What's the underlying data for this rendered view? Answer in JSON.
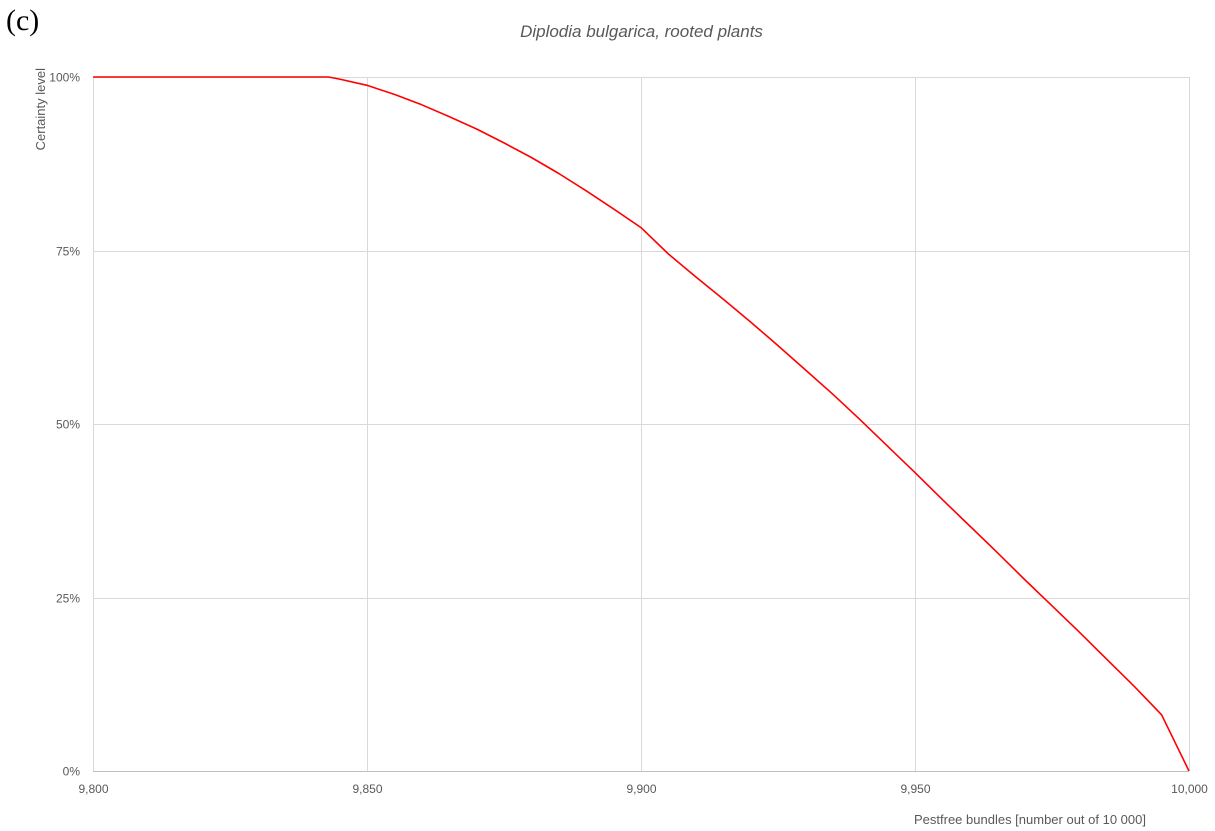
{
  "panel_label": "(c)",
  "chart_data": {
    "type": "line",
    "title": "Diplodia bulgarica, rooted plants",
    "xlabel": "Pestfree bundles [number out of 10 000]",
    "ylabel": "Certainty level",
    "xlim": [
      9800,
      10000
    ],
    "ylim": [
      0,
      1
    ],
    "x_ticks": [
      9800,
      9850,
      9900,
      9950,
      10000
    ],
    "x_tick_labels": [
      "9,800",
      "9,850",
      "9,900",
      "9,950",
      "10,000"
    ],
    "y_ticks": [
      0,
      0.25,
      0.5,
      0.75,
      1
    ],
    "y_tick_labels": [
      "0%",
      "25%",
      "50%",
      "75%",
      "100%"
    ],
    "grid": true,
    "series": [
      {
        "color": "#ff0000",
        "x": [
          9800,
          9810,
          9820,
          9830,
          9840,
          9843,
          9845,
          9850,
          9855,
          9860,
          9865,
          9870,
          9875,
          9880,
          9885,
          9890,
          9895,
          9900,
          9905,
          9910,
          9915,
          9920,
          9925,
          9930,
          9935,
          9940,
          9945,
          9950,
          9955,
          9960,
          9965,
          9970,
          9975,
          9980,
          9985,
          9990,
          9995,
          10000
        ],
        "y": [
          1.0,
          1.0,
          1.0,
          1.0,
          1.0,
          1.0,
          0.997,
          0.988,
          0.975,
          0.96,
          0.943,
          0.925,
          0.905,
          0.884,
          0.861,
          0.836,
          0.81,
          0.783,
          0.745,
          0.712,
          0.68,
          0.647,
          0.613,
          0.578,
          0.543,
          0.506,
          0.468,
          0.43,
          0.391,
          0.353,
          0.315,
          0.276,
          0.238,
          0.2,
          0.161,
          0.122,
          0.081,
          0.0
        ]
      }
    ]
  }
}
